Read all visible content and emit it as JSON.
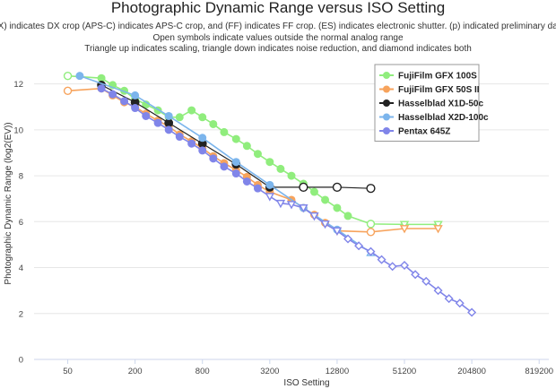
{
  "chart_data": {
    "type": "line",
    "title": "Photographic Dynamic Range versus ISO Setting",
    "subtitle_lines": [
      "(DX) indicates DX crop (APS-C) indicates APS-C crop, and (FF) indicates FF crop. (ES) indicates electronic shutter. (p) indicated preliminary data.",
      "Open symbols indicate values outside the normal analog range",
      "Triangle up indicates scaling, triangle down indicates noise reduction, and diamond indicates both"
    ],
    "xlabel": "ISO Setting",
    "ylabel": "Photographic Dynamic Range (log2(EV))",
    "x_scale": "log2",
    "xlim": [
      25,
      1000000
    ],
    "ylim": [
      0,
      13
    ],
    "x_ticks": [
      50,
      200,
      800,
      3200,
      12800,
      51200,
      204800,
      819200
    ],
    "y_ticks": [
      0,
      2,
      4,
      6,
      8,
      10,
      12
    ],
    "grid": "horizontal",
    "legend_position": "top-right",
    "series": [
      {
        "name": "FujiFilm GFX 100S",
        "color": "#90ed7d",
        "marker": "circle",
        "points": [
          {
            "x": 50,
            "y": 12.35,
            "m": "open-circle"
          },
          {
            "x": 100,
            "y": 12.25,
            "m": "circle"
          },
          {
            "x": 126,
            "y": 11.95,
            "m": "circle"
          },
          {
            "x": 160,
            "y": 11.7,
            "m": "circle"
          },
          {
            "x": 200,
            "y": 11.35,
            "m": "circle"
          },
          {
            "x": 250,
            "y": 11.1,
            "m": "circle"
          },
          {
            "x": 320,
            "y": 10.85,
            "m": "circle"
          },
          {
            "x": 400,
            "y": 10.55,
            "m": "circle"
          },
          {
            "x": 500,
            "y": 10.55,
            "m": "circle"
          },
          {
            "x": 640,
            "y": 10.85,
            "m": "circle"
          },
          {
            "x": 800,
            "y": 10.55,
            "m": "circle"
          },
          {
            "x": 1000,
            "y": 10.25,
            "m": "circle"
          },
          {
            "x": 1250,
            "y": 9.9,
            "m": "circle"
          },
          {
            "x": 1600,
            "y": 9.6,
            "m": "circle"
          },
          {
            "x": 2000,
            "y": 9.3,
            "m": "circle"
          },
          {
            "x": 2500,
            "y": 8.95,
            "m": "circle"
          },
          {
            "x": 3200,
            "y": 8.6,
            "m": "circle"
          },
          {
            "x": 4000,
            "y": 8.3,
            "m": "circle"
          },
          {
            "x": 5000,
            "y": 8.0,
            "m": "circle"
          },
          {
            "x": 6400,
            "y": 7.65,
            "m": "circle"
          },
          {
            "x": 8000,
            "y": 7.3,
            "m": "circle"
          },
          {
            "x": 10000,
            "y": 6.95,
            "m": "circle"
          },
          {
            "x": 12800,
            "y": 6.6,
            "m": "circle"
          },
          {
            "x": 16000,
            "y": 6.25,
            "m": "circle"
          },
          {
            "x": 25600,
            "y": 5.9,
            "m": "open-circle"
          },
          {
            "x": 51200,
            "y": 5.88,
            "m": "open-triangle-down"
          },
          {
            "x": 102400,
            "y": 5.88,
            "m": "open-triangle-down"
          }
        ]
      },
      {
        "name": "FujiFilm GFX 50S II",
        "color": "#f7a35c",
        "marker": "circle",
        "points": [
          {
            "x": 50,
            "y": 11.7,
            "m": "open-circle"
          },
          {
            "x": 100,
            "y": 11.8,
            "m": "circle"
          },
          {
            "x": 126,
            "y": 11.5,
            "m": "circle"
          },
          {
            "x": 160,
            "y": 11.2,
            "m": "circle"
          },
          {
            "x": 200,
            "y": 11.0,
            "m": "circle"
          },
          {
            "x": 250,
            "y": 10.7,
            "m": "circle"
          },
          {
            "x": 320,
            "y": 10.4,
            "m": "circle"
          },
          {
            "x": 400,
            "y": 10.15,
            "m": "circle"
          },
          {
            "x": 500,
            "y": 9.8,
            "m": "circle"
          },
          {
            "x": 640,
            "y": 9.5,
            "m": "circle"
          },
          {
            "x": 800,
            "y": 9.2,
            "m": "circle"
          },
          {
            "x": 1000,
            "y": 8.85,
            "m": "circle"
          },
          {
            "x": 1250,
            "y": 8.55,
            "m": "circle"
          },
          {
            "x": 1600,
            "y": 8.25,
            "m": "circle"
          },
          {
            "x": 2000,
            "y": 7.95,
            "m": "circle"
          },
          {
            "x": 2500,
            "y": 7.6,
            "m": "circle"
          },
          {
            "x": 3200,
            "y": 7.3,
            "m": "circle"
          },
          {
            "x": 5000,
            "y": 6.95,
            "m": "circle"
          },
          {
            "x": 6400,
            "y": 6.6,
            "m": "circle"
          },
          {
            "x": 8000,
            "y": 6.3,
            "m": "circle"
          },
          {
            "x": 10000,
            "y": 5.95,
            "m": "circle"
          },
          {
            "x": 12800,
            "y": 5.6,
            "m": "open-triangle-down"
          },
          {
            "x": 25600,
            "y": 5.55,
            "m": "open-circle"
          },
          {
            "x": 51200,
            "y": 5.7,
            "m": "open-triangle-down"
          },
          {
            "x": 102400,
            "y": 5.7,
            "m": "open-triangle-down"
          }
        ]
      },
      {
        "name": "Hasselblad X1D-50c",
        "color": "#222222",
        "marker": "circle",
        "points": [
          {
            "x": 100,
            "y": 11.95,
            "m": "circle"
          },
          {
            "x": 200,
            "y": 11.2,
            "m": "circle"
          },
          {
            "x": 400,
            "y": 10.3,
            "m": "circle"
          },
          {
            "x": 800,
            "y": 9.4,
            "m": "circle"
          },
          {
            "x": 1600,
            "y": 8.5,
            "m": "circle"
          },
          {
            "x": 3200,
            "y": 7.5,
            "m": "circle"
          },
          {
            "x": 6400,
            "y": 7.5,
            "m": "open-circle"
          },
          {
            "x": 12800,
            "y": 7.5,
            "m": "open-circle"
          },
          {
            "x": 25600,
            "y": 7.45,
            "m": "open-circle"
          }
        ]
      },
      {
        "name": "Hasselblad X2D-100c",
        "color": "#7cb5ec",
        "marker": "circle",
        "points": [
          {
            "x": 64,
            "y": 12.35,
            "m": "circle"
          },
          {
            "x": 200,
            "y": 11.5,
            "m": "circle"
          },
          {
            "x": 400,
            "y": 10.6,
            "m": "circle"
          },
          {
            "x": 800,
            "y": 9.65,
            "m": "circle"
          },
          {
            "x": 1600,
            "y": 8.6,
            "m": "circle"
          },
          {
            "x": 3200,
            "y": 7.6,
            "m": "circle"
          },
          {
            "x": 6400,
            "y": 6.6,
            "m": "circle"
          },
          {
            "x": 12800,
            "y": 5.65,
            "m": "circle"
          },
          {
            "x": 25600,
            "y": 4.65,
            "m": "open-triangle-up"
          }
        ]
      },
      {
        "name": "Pentax 645Z",
        "color": "#8085e9",
        "marker": "circle",
        "points": [
          {
            "x": 100,
            "y": 11.8,
            "m": "circle"
          },
          {
            "x": 126,
            "y": 11.55,
            "m": "circle"
          },
          {
            "x": 160,
            "y": 11.25,
            "m": "circle"
          },
          {
            "x": 200,
            "y": 10.95,
            "m": "circle"
          },
          {
            "x": 250,
            "y": 10.6,
            "m": "circle"
          },
          {
            "x": 320,
            "y": 10.3,
            "m": "circle"
          },
          {
            "x": 400,
            "y": 10.0,
            "m": "circle"
          },
          {
            "x": 500,
            "y": 9.7,
            "m": "circle"
          },
          {
            "x": 640,
            "y": 9.4,
            "m": "circle"
          },
          {
            "x": 800,
            "y": 9.1,
            "m": "circle"
          },
          {
            "x": 1000,
            "y": 8.75,
            "m": "circle"
          },
          {
            "x": 1250,
            "y": 8.4,
            "m": "circle"
          },
          {
            "x": 1600,
            "y": 8.1,
            "m": "circle"
          },
          {
            "x": 2000,
            "y": 7.75,
            "m": "circle"
          },
          {
            "x": 2500,
            "y": 7.45,
            "m": "circle"
          },
          {
            "x": 3200,
            "y": 7.1,
            "m": "open-triangle-down"
          },
          {
            "x": 4000,
            "y": 6.8,
            "m": "open-triangle-down"
          },
          {
            "x": 5000,
            "y": 6.75,
            "m": "open-triangle-down"
          },
          {
            "x": 6400,
            "y": 6.6,
            "m": "open-triangle-down"
          },
          {
            "x": 8000,
            "y": 6.25,
            "m": "open-triangle-down"
          },
          {
            "x": 10000,
            "y": 5.9,
            "m": "open-triangle-down"
          },
          {
            "x": 12800,
            "y": 5.6,
            "m": "open-triangle-down"
          },
          {
            "x": 16000,
            "y": 5.25,
            "m": "open-diamond"
          },
          {
            "x": 20000,
            "y": 4.95,
            "m": "open-diamond"
          },
          {
            "x": 25600,
            "y": 4.7,
            "m": "open-diamond"
          },
          {
            "x": 32000,
            "y": 4.35,
            "m": "open-diamond"
          },
          {
            "x": 40000,
            "y": 4.05,
            "m": "open-diamond"
          },
          {
            "x": 51200,
            "y": 4.1,
            "m": "open-diamond"
          },
          {
            "x": 64000,
            "y": 3.7,
            "m": "open-diamond"
          },
          {
            "x": 80000,
            "y": 3.4,
            "m": "open-diamond"
          },
          {
            "x": 102400,
            "y": 3.0,
            "m": "open-diamond"
          },
          {
            "x": 128000,
            "y": 2.65,
            "m": "open-diamond"
          },
          {
            "x": 160000,
            "y": 2.45,
            "m": "open-diamond"
          },
          {
            "x": 204800,
            "y": 2.05,
            "m": "open-diamond"
          }
        ]
      }
    ]
  }
}
